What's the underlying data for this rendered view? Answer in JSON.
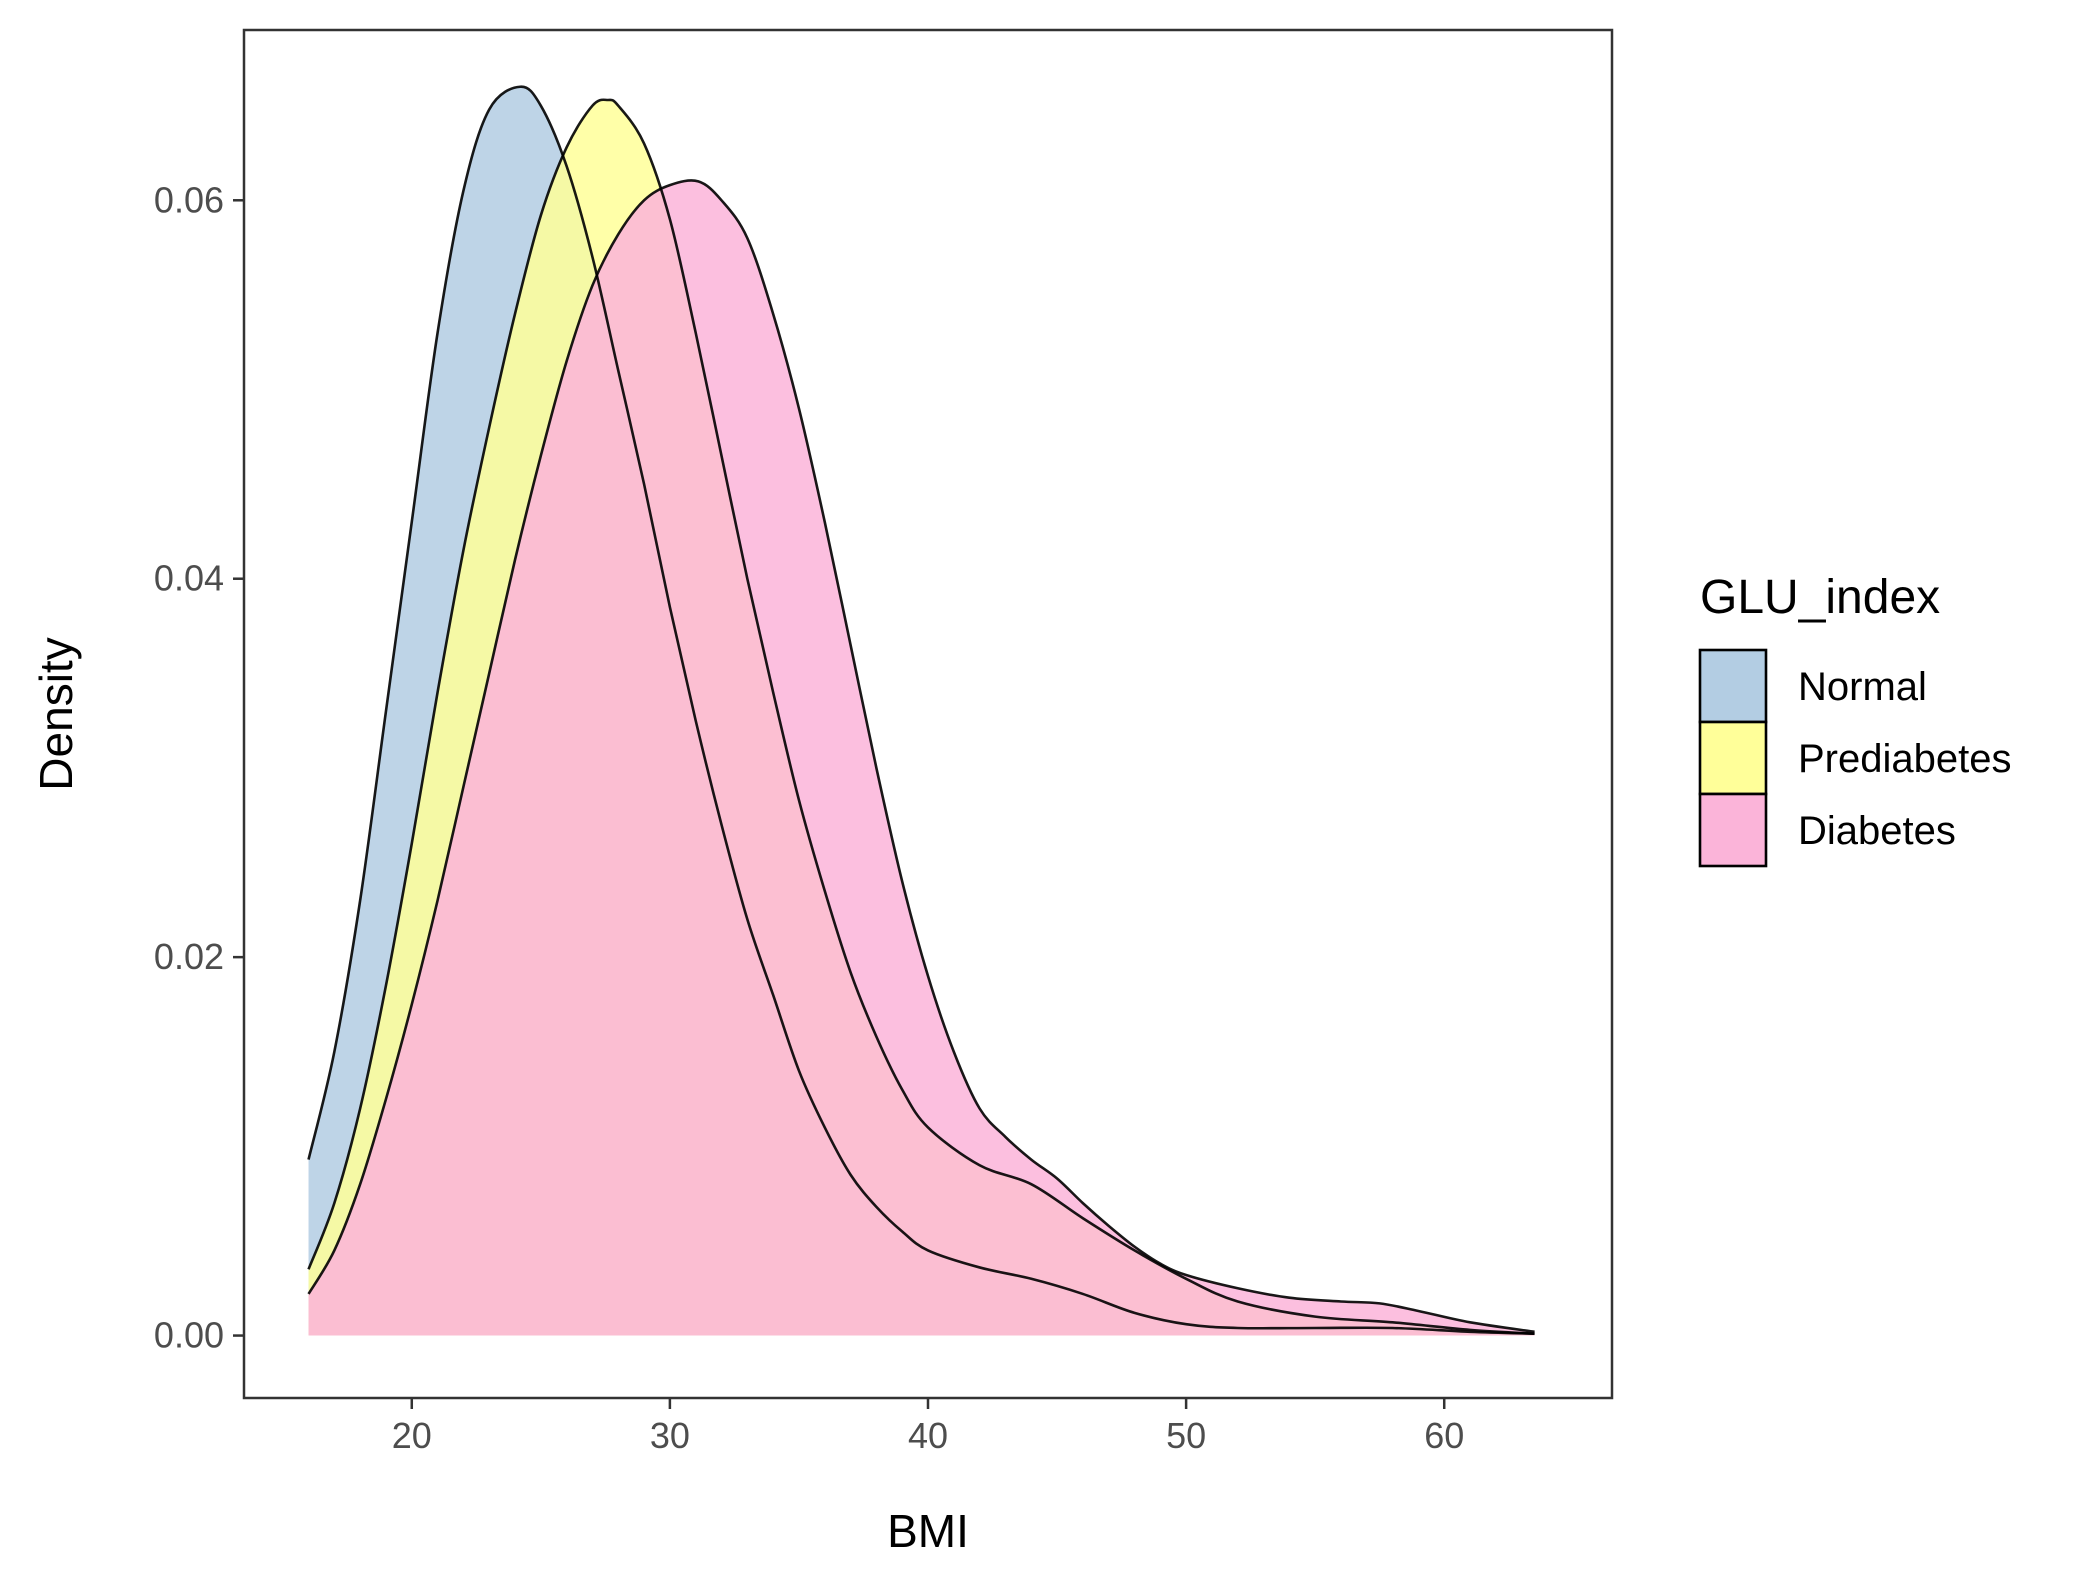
{
  "chart_data": {
    "type": "area",
    "subtype": "density",
    "title": "",
    "xlabel": "BMI",
    "ylabel": "Density",
    "xlim": [
      13.5,
      66.5
    ],
    "ylim": [
      -0.0033,
      0.069
    ],
    "xticks": [
      20,
      30,
      40,
      50,
      60
    ],
    "yticks": [
      0.0,
      0.02,
      0.04,
      0.06
    ],
    "xtick_labels": [
      "20",
      "30",
      "40",
      "50",
      "60"
    ],
    "ytick_labels": [
      "0.00",
      "0.02",
      "0.04",
      "0.06"
    ],
    "grid": false,
    "legend": {
      "title": "GLU_index",
      "position": "right"
    },
    "series": [
      {
        "name": "Normal",
        "color": "#b3cde3",
        "points": [
          [
            16.0,
            0.0093
          ],
          [
            17.0,
            0.015
          ],
          [
            18.0,
            0.023
          ],
          [
            19.0,
            0.033
          ],
          [
            20.0,
            0.043
          ],
          [
            21.0,
            0.053
          ],
          [
            22.0,
            0.0605
          ],
          [
            23.0,
            0.0648
          ],
          [
            24.2,
            0.066
          ],
          [
            25.0,
            0.065
          ],
          [
            26.0,
            0.0618
          ],
          [
            27.0,
            0.057
          ],
          [
            28.0,
            0.051
          ],
          [
            29.0,
            0.045
          ],
          [
            30.0,
            0.0385
          ],
          [
            31.0,
            0.0325
          ],
          [
            32.0,
            0.027
          ],
          [
            33.0,
            0.022
          ],
          [
            34.0,
            0.018
          ],
          [
            35.0,
            0.014
          ],
          [
            36.0,
            0.011
          ],
          [
            37.0,
            0.0085
          ],
          [
            38.0,
            0.0068
          ],
          [
            39.0,
            0.0055
          ],
          [
            40.0,
            0.0045
          ],
          [
            42.0,
            0.0036
          ],
          [
            44.0,
            0.003
          ],
          [
            46.0,
            0.0022
          ],
          [
            48.0,
            0.0012
          ],
          [
            50.0,
            0.0006
          ],
          [
            52.0,
            0.0004
          ],
          [
            55.0,
            0.0004
          ],
          [
            58.0,
            0.0004
          ],
          [
            61.0,
            0.0002
          ],
          [
            63.5,
            0.0001
          ]
        ]
      },
      {
        "name": "Prediabetes",
        "color": "#ffff99",
        "points": [
          [
            16.0,
            0.0035
          ],
          [
            17.0,
            0.007
          ],
          [
            18.0,
            0.012
          ],
          [
            19.0,
            0.0185
          ],
          [
            20.0,
            0.026
          ],
          [
            21.0,
            0.034
          ],
          [
            22.0,
            0.0415
          ],
          [
            23.0,
            0.048
          ],
          [
            24.0,
            0.054
          ],
          [
            25.0,
            0.0592
          ],
          [
            26.0,
            0.0628
          ],
          [
            27.0,
            0.065
          ],
          [
            27.6,
            0.0653
          ],
          [
            28.0,
            0.065
          ],
          [
            29.0,
            0.063
          ],
          [
            30.0,
            0.059
          ],
          [
            31.0,
            0.053
          ],
          [
            32.0,
            0.0465
          ],
          [
            33.0,
            0.04
          ],
          [
            34.0,
            0.034
          ],
          [
            35.0,
            0.0283
          ],
          [
            36.0,
            0.0235
          ],
          [
            37.0,
            0.0192
          ],
          [
            38.0,
            0.0158
          ],
          [
            39.0,
            0.013
          ],
          [
            40.0,
            0.011
          ],
          [
            42.0,
            0.009
          ],
          [
            44.0,
            0.008
          ],
          [
            46.0,
            0.0062
          ],
          [
            48.0,
            0.0045
          ],
          [
            50.0,
            0.003
          ],
          [
            52.0,
            0.0018
          ],
          [
            55.0,
            0.001
          ],
          [
            58.0,
            0.0007
          ],
          [
            61.0,
            0.0003
          ],
          [
            63.5,
            0.0001
          ]
        ]
      },
      {
        "name": "Diabetes",
        "color": "#fbb4d9",
        "points": [
          [
            16.0,
            0.0022
          ],
          [
            17.0,
            0.0045
          ],
          [
            18.0,
            0.008
          ],
          [
            19.0,
            0.0125
          ],
          [
            20.0,
            0.0175
          ],
          [
            21.0,
            0.023
          ],
          [
            22.0,
            0.029
          ],
          [
            23.0,
            0.035
          ],
          [
            24.0,
            0.041
          ],
          [
            25.0,
            0.0465
          ],
          [
            26.0,
            0.0515
          ],
          [
            27.0,
            0.0555
          ],
          [
            28.0,
            0.0582
          ],
          [
            29.0,
            0.06
          ],
          [
            30.0,
            0.0608
          ],
          [
            31.1,
            0.061
          ],
          [
            32.0,
            0.06
          ],
          [
            33.0,
            0.058
          ],
          [
            34.0,
            0.054
          ],
          [
            35.0,
            0.049
          ],
          [
            36.0,
            0.043
          ],
          [
            37.0,
            0.0365
          ],
          [
            38.0,
            0.03
          ],
          [
            39.0,
            0.024
          ],
          [
            40.0,
            0.019
          ],
          [
            41.0,
            0.015
          ],
          [
            42.0,
            0.012
          ],
          [
            43.0,
            0.0105
          ],
          [
            44.0,
            0.0093
          ],
          [
            45.0,
            0.0083
          ],
          [
            46.0,
            0.007
          ],
          [
            47.0,
            0.0058
          ],
          [
            48.0,
            0.0047
          ],
          [
            49.0,
            0.0038
          ],
          [
            50.0,
            0.0032
          ],
          [
            52.0,
            0.0025
          ],
          [
            54.0,
            0.002
          ],
          [
            56.0,
            0.0018
          ],
          [
            57.5,
            0.0017
          ],
          [
            59.0,
            0.0013
          ],
          [
            61.0,
            0.0007
          ],
          [
            63.5,
            0.0002
          ]
        ]
      }
    ]
  }
}
